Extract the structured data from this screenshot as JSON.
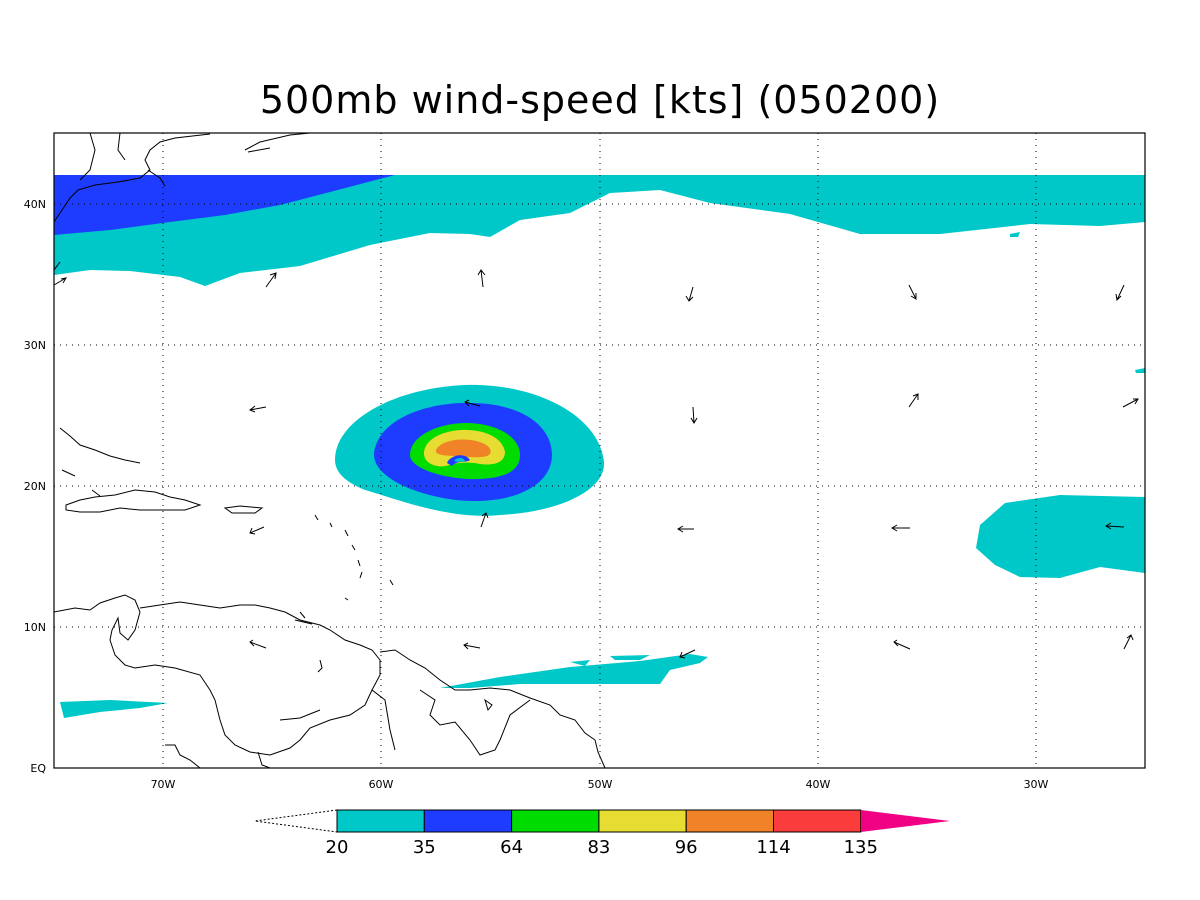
{
  "title": "500mb wind-speed [kts] (050200)",
  "lat_labels": [
    "40N",
    "30N",
    "20N",
    "10N",
    "EQ"
  ],
  "lon_labels": [
    "70W",
    "60W",
    "50W",
    "40W",
    "30W"
  ],
  "legend": {
    "levels": [
      "20",
      "35",
      "64",
      "83",
      "96",
      "114",
      "135"
    ],
    "colors": [
      "#00c8c8",
      "#1e3cff",
      "#00dc00",
      "#e6dc32",
      "#f08228",
      "#fa3c3c",
      "#f00082"
    ]
  },
  "map_data": {
    "lon_range": [
      -75,
      -25
    ],
    "lat_range": [
      0,
      45
    ],
    "grid": true
  }
}
